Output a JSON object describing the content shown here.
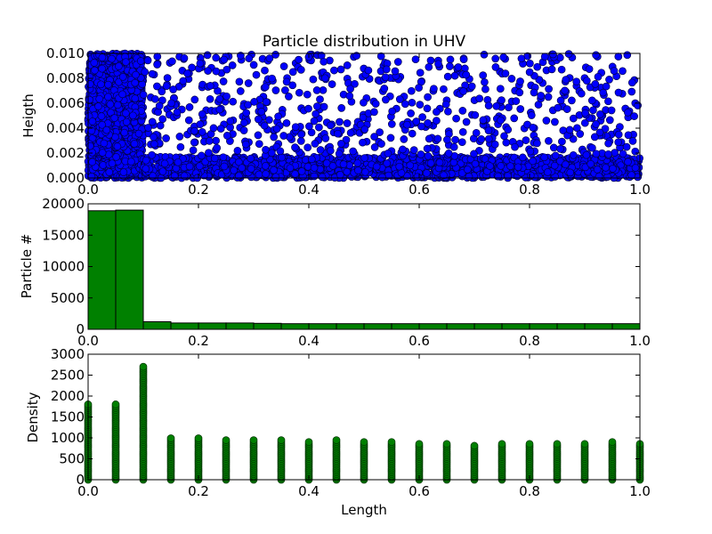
{
  "chart_data": [
    {
      "type": "scatter",
      "title": "Particle distribution in UHV",
      "xlabel": "Length",
      "ylabel": "Heigth",
      "xlim": [
        0,
        1
      ],
      "ylim": [
        0,
        0.01
      ],
      "xticks": [
        "0.0",
        "0.2",
        "0.4",
        "0.6",
        "0.8",
        "1.0"
      ],
      "yticks": [
        "0.000",
        "0.002",
        "0.004",
        "0.006",
        "0.008",
        "0.010"
      ],
      "marker_color": "#0000ff",
      "regions": [
        {
          "x": [
            0,
            0.1
          ],
          "y": [
            0,
            0.01
          ],
          "density": "very dense"
        },
        {
          "x": [
            0.1,
            1.0
          ],
          "y": [
            0,
            0.0017
          ],
          "density": "very dense"
        },
        {
          "x": [
            0.1,
            1.0
          ],
          "y": [
            0.0017,
            0.01
          ],
          "density": "sparse"
        }
      ]
    },
    {
      "type": "bar",
      "xlabel": "Length",
      "ylabel": "Particle #",
      "xlim": [
        0,
        1
      ],
      "ylim": [
        0,
        20000
      ],
      "xticks": [
        "0.0",
        "0.2",
        "0.4",
        "0.6",
        "0.8",
        "1.0"
      ],
      "yticks": [
        "0",
        "5000",
        "10000",
        "15000",
        "20000"
      ],
      "bar_color": "#008000",
      "bin_width": 0.05,
      "bins": [
        0,
        0.05,
        0.1,
        0.15,
        0.2,
        0.25,
        0.3,
        0.35,
        0.4,
        0.45,
        0.5,
        0.55,
        0.6,
        0.65,
        0.7,
        0.75,
        0.8,
        0.85,
        0.9,
        0.95
      ],
      "values": [
        18900,
        19000,
        1200,
        1000,
        1000,
        1000,
        950,
        900,
        900,
        900,
        900,
        900,
        900,
        900,
        900,
        900,
        900,
        900,
        900,
        900
      ]
    },
    {
      "type": "scatter",
      "xlabel": "Length",
      "ylabel": "Density",
      "xlim": [
        0,
        1
      ],
      "ylim": [
        0,
        3000
      ],
      "xticks": [
        "0.0",
        "0.2",
        "0.4",
        "0.6",
        "0.8",
        "1.0"
      ],
      "yticks": [
        "0",
        "500",
        "1000",
        "1500",
        "2000",
        "2500",
        "3000"
      ],
      "marker_color": "#008000",
      "x": [
        0,
        0.05,
        0.1,
        0.15,
        0.2,
        0.25,
        0.3,
        0.35,
        0.4,
        0.45,
        0.5,
        0.55,
        0.6,
        0.65,
        0.7,
        0.75,
        0.8,
        0.85,
        0.9,
        0.95,
        1.0
      ],
      "max_density": [
        1800,
        1800,
        2700,
        1000,
        1000,
        970,
        970,
        950,
        930,
        950,
        920,
        910,
        890,
        890,
        850,
        890,
        870,
        890,
        890,
        900,
        870
      ]
    }
  ]
}
